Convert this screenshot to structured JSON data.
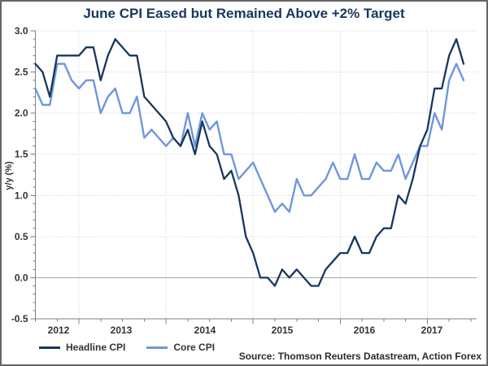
{
  "frame": {
    "border_color": "#666666",
    "background": "#ffffff"
  },
  "chart_data": {
    "type": "line",
    "title": "June CPI Eased but Remained Above +2% Target",
    "title_color": "#17375e",
    "ylabel": "y/y (%)",
    "source": "Source: Thomson Reuters Datastream, Action Forex",
    "freq": "monthly",
    "x_range": "Jul 2012 - Jun 2017",
    "x_tick_labels": [
      "2012",
      "2013",
      "2014",
      "2015",
      "2016",
      "2017"
    ],
    "y_ticks": [
      3.0,
      2.5,
      2.0,
      1.5,
      1.0,
      0.5,
      0.0,
      -0.5
    ],
    "y_tick_labels": [
      "3.0",
      "2.5",
      "2.0",
      "1.5",
      "1.0",
      "0.5",
      "0.0",
      "-0.5"
    ],
    "ylim": [
      -0.5,
      3.0
    ],
    "grid": {
      "horizontal": "dotted at 0.5 steps",
      "vertical": "dotted at year boundaries",
      "zero_line": "solid gray"
    },
    "legend": {
      "position": "bottom-left"
    },
    "series": [
      {
        "name": "Headline CPI",
        "color": "#17375e",
        "start": "2012-07",
        "values": [
          2.6,
          2.5,
          2.2,
          2.7,
          2.7,
          2.7,
          2.7,
          2.8,
          2.8,
          2.4,
          2.7,
          2.9,
          2.8,
          2.7,
          2.7,
          2.2,
          2.1,
          2.0,
          1.9,
          1.7,
          1.6,
          1.8,
          1.5,
          1.9,
          1.6,
          1.5,
          1.2,
          1.3,
          1.0,
          0.5,
          0.3,
          0.0,
          0.0,
          -0.1,
          0.1,
          0.0,
          0.1,
          0.0,
          -0.1,
          -0.1,
          0.1,
          0.2,
          0.3,
          0.3,
          0.5,
          0.3,
          0.3,
          0.5,
          0.6,
          0.6,
          1.0,
          0.9,
          1.2,
          1.6,
          1.8,
          2.3,
          2.3,
          2.7,
          2.9,
          2.6
        ]
      },
      {
        "name": "Core CPI",
        "color": "#6f96dd",
        "start": "2012-07",
        "values": [
          2.3,
          2.1,
          2.1,
          2.6,
          2.6,
          2.4,
          2.3,
          2.4,
          2.4,
          2.0,
          2.2,
          2.3,
          2.0,
          2.0,
          2.2,
          1.7,
          1.8,
          1.7,
          1.6,
          1.7,
          1.6,
          2.0,
          1.6,
          2.0,
          1.8,
          1.9,
          1.5,
          1.5,
          1.2,
          1.3,
          1.4,
          1.2,
          1.0,
          0.8,
          0.9,
          0.8,
          1.2,
          1.0,
          1.0,
          1.1,
          1.2,
          1.4,
          1.2,
          1.2,
          1.5,
          1.2,
          1.2,
          1.4,
          1.3,
          1.3,
          1.5,
          1.2,
          1.4,
          1.6,
          1.6,
          2.0,
          1.8,
          2.4,
          2.6,
          2.4
        ]
      }
    ]
  }
}
